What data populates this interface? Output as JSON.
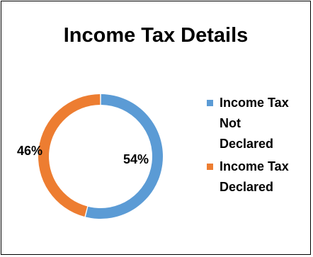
{
  "chart_data": {
    "type": "pie",
    "style": "donut",
    "title": "Income Tax Details",
    "legend_position": "right",
    "slices": [
      {
        "label": "Income Tax Not Declared",
        "value": 54,
        "display": "54%",
        "color": "#5B9BD5"
      },
      {
        "label": "Income Tax Declared",
        "value": 46,
        "display": "46%",
        "color": "#ED7D31"
      }
    ]
  },
  "legend": {
    "items": [
      {
        "lines": [
          "Income Tax",
          "Not",
          "Declared"
        ],
        "color": "#5B9BD5"
      },
      {
        "lines": [
          "Income Tax",
          "Declared"
        ],
        "color": "#ED7D31"
      }
    ]
  }
}
